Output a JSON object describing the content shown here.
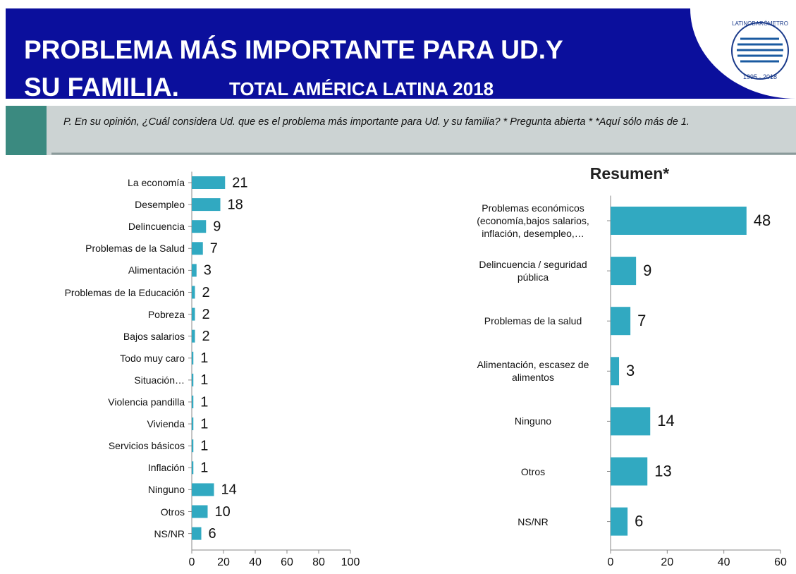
{
  "header": {
    "title_line1": "PROBLEMA MÁS IMPORTANTE PARA UD.Y",
    "title_line2": "SU FAMILIA.",
    "subtitle": "TOTAL AMÉRICA LATINA 2018"
  },
  "logo": {
    "name": "LATINOBARÓMETRO",
    "years": "1995 · 2018"
  },
  "question": "P. En su opinión, ¿Cuál considera Ud. que es el problema más importante para Ud. y su familia? * Pregunta abierta  * *Aquí sólo más de 1.",
  "chart_data": [
    {
      "type": "hbar",
      "color": "#31a9c1",
      "categories": [
        "La economía",
        "Desempleo",
        "Delincuencia",
        "Problemas de la Salud",
        "Alimentación",
        "Problemas de la Educación",
        "Pobreza",
        "Bajos salarios",
        "Todo muy caro",
        "Situación…",
        "Violencia pandilla",
        "Vivienda",
        "Servicios básicos",
        "Inflación",
        "Ninguno",
        "Otros",
        "NS/NR"
      ],
      "values": [
        21,
        18,
        9,
        7,
        3,
        2,
        2,
        2,
        1,
        1,
        1,
        1,
        1,
        1,
        14,
        10,
        6
      ],
      "xlim": [
        0,
        100
      ],
      "xticks": [
        0,
        20,
        40,
        60,
        80,
        100
      ]
    },
    {
      "type": "hbar",
      "title": "Resumen*",
      "color": "#31a9c1",
      "categories": [
        "Problemas económicos (economía,bajos salarios, inflación, desempleo,…",
        "Delincuencia / seguridad pública",
        "Problemas de la salud",
        "Alimentación, escasez de alimentos",
        "Ninguno",
        "Otros",
        "NS/NR"
      ],
      "values": [
        48,
        9,
        7,
        3,
        14,
        13,
        6
      ],
      "xlim": [
        0,
        60
      ],
      "xticks": [
        0,
        20,
        40,
        60
      ]
    }
  ]
}
